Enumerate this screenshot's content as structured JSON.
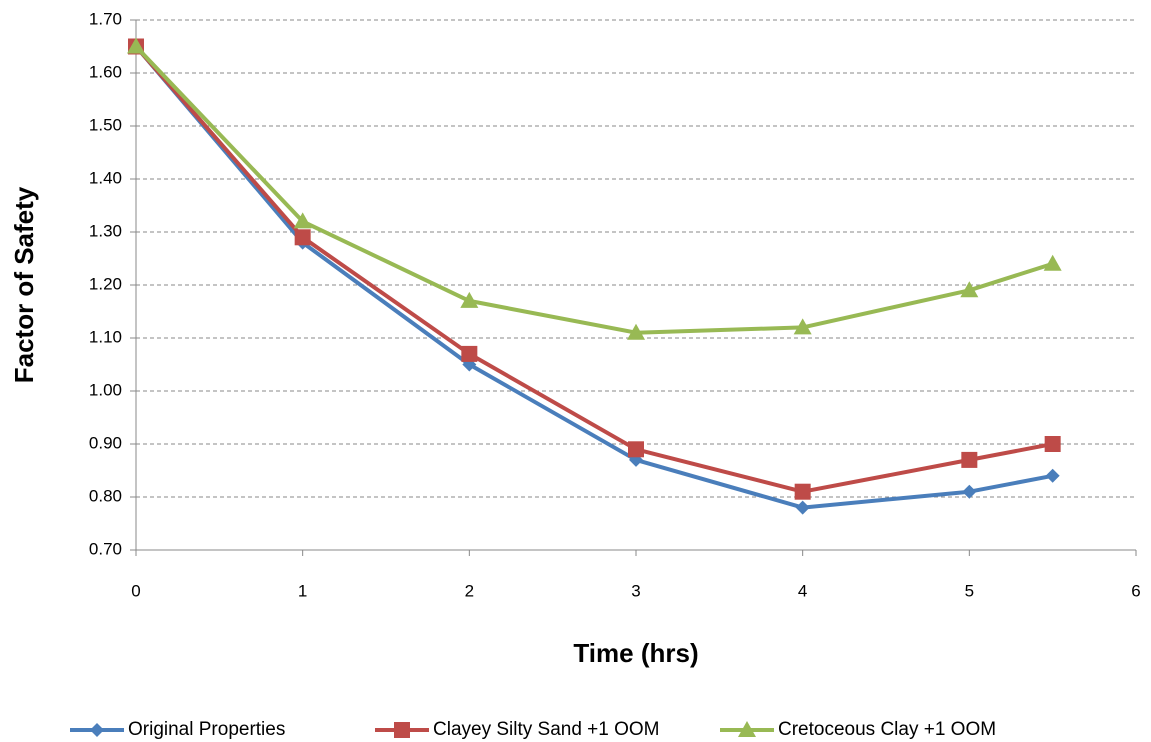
{
  "chart_data": {
    "type": "line",
    "x_label": "Time (hrs)",
    "y_label": "Factor of Safety",
    "x": [
      0,
      1,
      2,
      3,
      4,
      5,
      5.5
    ],
    "series": [
      {
        "name": "Original Properties",
        "color": "#4a7ebb",
        "marker": "diamond",
        "values": [
          1.65,
          1.28,
          1.05,
          0.87,
          0.78,
          0.81,
          0.84
        ]
      },
      {
        "name": "Clayey Silty Sand +1 OOM",
        "color": "#be4b48",
        "marker": "square",
        "values": [
          1.65,
          1.29,
          1.07,
          0.89,
          0.81,
          0.87,
          0.9
        ]
      },
      {
        "name": "Cretoceous Clay +1 OOM",
        "color": "#98b954",
        "marker": "triangle",
        "values": [
          1.65,
          1.32,
          1.17,
          1.11,
          1.12,
          1.19,
          1.24
        ]
      }
    ],
    "xlim": [
      0,
      6
    ],
    "xticks": [
      0,
      1,
      2,
      3,
      4,
      5,
      6
    ],
    "ylim": [
      0.7,
      1.7
    ],
    "yticks": [
      {
        "value": 0.7,
        "label": "0.70"
      },
      {
        "value": 0.8,
        "label": "0.80"
      },
      {
        "value": 0.9,
        "label": "0.90"
      },
      {
        "value": 1.0,
        "label": "1.00"
      },
      {
        "value": 1.1,
        "label": "1.10"
      },
      {
        "value": 1.2,
        "label": "1.20"
      },
      {
        "value": 1.3,
        "label": "1.30"
      },
      {
        "value": 1.4,
        "label": "1.40"
      },
      {
        "value": 1.5,
        "label": "1.50"
      },
      {
        "value": 1.6,
        "label": "1.60"
      },
      {
        "value": 1.7,
        "label": "1.70"
      }
    ],
    "grid": true,
    "legend": "bottom"
  }
}
